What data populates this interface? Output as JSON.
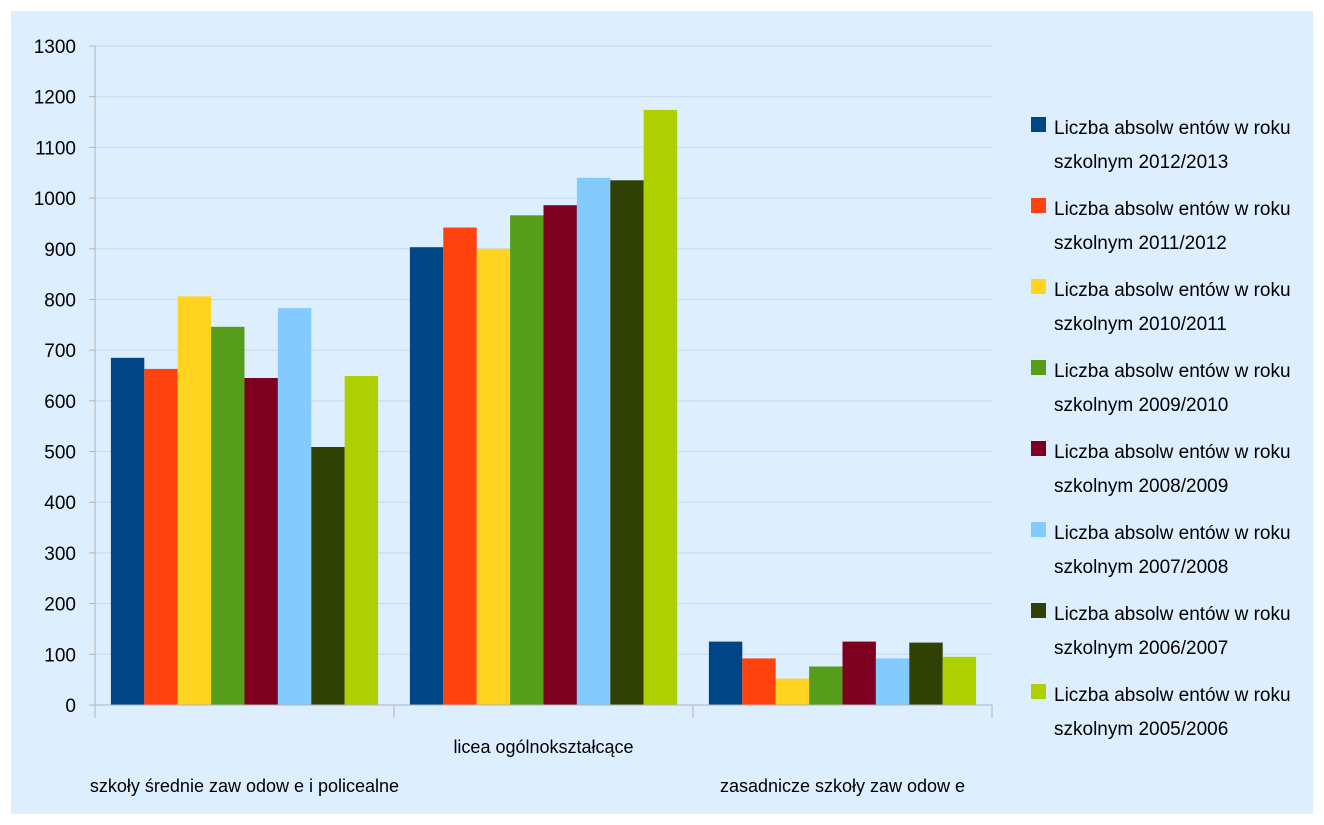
{
  "chart_data": {
    "type": "bar",
    "title": "",
    "xlabel": "",
    "ylabel": "",
    "ylim": [
      0,
      1300
    ],
    "yticks": [
      0,
      100,
      200,
      300,
      400,
      500,
      600,
      700,
      800,
      900,
      1000,
      1100,
      1200,
      1300
    ],
    "grid": true,
    "legend_position": "right",
    "categories": [
      "szkoły średnie zaw odow e i policealne",
      "licea ogólnokształcące",
      "zasadnicze szkoły zaw odow e"
    ],
    "series": [
      {
        "name_line1": "Liczba absolw entów  w  roku",
        "name_line2": "szkolnym 2012/2013",
        "color": "#004586",
        "values": [
          685,
          903,
          125
        ]
      },
      {
        "name_line1": "Liczba absolw entów  w  roku",
        "name_line2": "szkolnym 2011/2012",
        "color": "#ff420e",
        "values": [
          663,
          942,
          92
        ]
      },
      {
        "name_line1": "Liczba absolw entów  w  roku",
        "name_line2": "szkolnym 2010/2011",
        "color": "#ffd320",
        "values": [
          806,
          900,
          52
        ]
      },
      {
        "name_line1": "Liczba absolw entów  w  roku",
        "name_line2": "szkolnym 2009/2010",
        "color": "#579d1c",
        "values": [
          746,
          966,
          76
        ]
      },
      {
        "name_line1": "Liczba absolw entów  w  roku",
        "name_line2": "szkolnym 2008/2009",
        "color": "#7e0021",
        "values": [
          645,
          986,
          125
        ]
      },
      {
        "name_line1": "Liczba absolw entów  w  roku",
        "name_line2": "szkolnym 2007/2008",
        "color": "#83caff",
        "values": [
          783,
          1040,
          92
        ]
      },
      {
        "name_line1": "Liczba absolw entów  w  roku",
        "name_line2": "szkolnym 2006/2007",
        "color": "#314004",
        "values": [
          509,
          1035,
          123
        ]
      },
      {
        "name_line1": "Liczba absolw entów  w  roku",
        "name_line2": "szkolnym 2005/2006",
        "color": "#aecf00",
        "values": [
          649,
          1174,
          95
        ]
      }
    ]
  }
}
